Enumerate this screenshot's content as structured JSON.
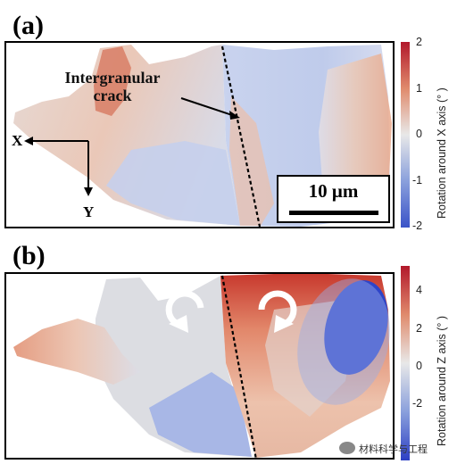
{
  "panel_a": {
    "label": "(a)",
    "annotation_line1": "Intergranular",
    "annotation_line2": "crack",
    "axis_x": "X",
    "axis_y": "Y",
    "scale_bar": "10 μm",
    "colorbar": {
      "label": "Rotation around X axis (° )",
      "ticks": [
        "2",
        "1",
        "0",
        "-1",
        "-2"
      ],
      "max_color": "#b2182b",
      "mid_color": "#e8e8e8",
      "min_color": "#3a53c8"
    }
  },
  "panel_b": {
    "label": "(b)",
    "colorbar": {
      "label": "Rotation around Z axis (° )",
      "ticks": [
        "4",
        "2",
        "0",
        "-2"
      ],
      "max_color": "#b2182b",
      "mid_color": "#e8e8e8",
      "min_color": "#2d3fc4"
    }
  },
  "watermark": "材料科学与工程"
}
